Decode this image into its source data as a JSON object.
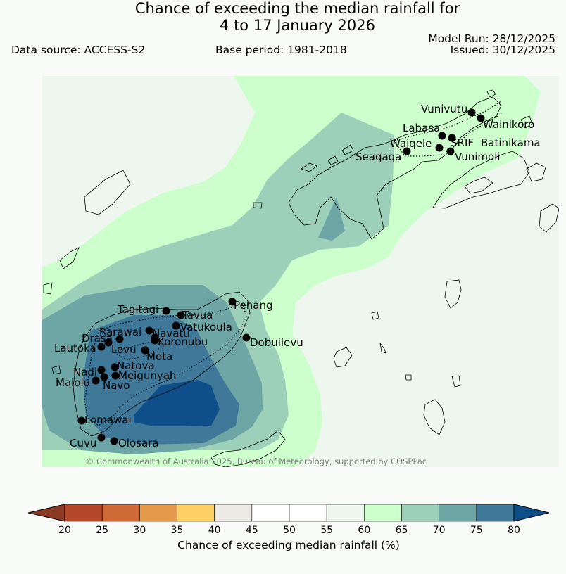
{
  "header": {
    "title_line1": "Chance of exceeding the median rainfall for",
    "title_line2": "4 to 17 January 2026",
    "data_source": "Data source: ACCESS-S2",
    "base_period": "Base period: 1981-2018",
    "model_run": "Model Run: 28/12/2025",
    "issued": "Issued: 30/12/2025"
  },
  "map": {
    "copyright": "© Commonwealth of Australia 2025, Bureau of Meteorology, supported by COSPPac",
    "stations": [
      "Vunivutu",
      "Wainikoro",
      "Labasa",
      "Waiqele",
      "SRIF",
      "Batinikama",
      "Seaqaqa",
      "Vunimoli",
      "Penang",
      "Tagitagi",
      "Tavua",
      "Vatukoula",
      "Rarawai",
      "Navatu",
      "Drasa",
      "Koronubu",
      "Lautoka",
      "Lovu",
      "Mota",
      "Natova",
      "Nadi",
      "Meigunyah",
      "Malolo",
      "Navo",
      "Dobuilevu",
      "Lomawai",
      "Cuvu",
      "Olosara"
    ]
  },
  "colorbar": {
    "label": "Chance of exceeding median rainfall (%)",
    "ticks": [
      "20",
      "25",
      "30",
      "35",
      "40",
      "45",
      "50",
      "55",
      "60",
      "65",
      "70",
      "75",
      "80"
    ],
    "colors": [
      "#b5472a",
      "#cf6a36",
      "#e39a4a",
      "#fdd066",
      "#ece8e4",
      "#ffffff",
      "#ffffff",
      "#edf7ed",
      "#ccffcc",
      "#9dd0b9",
      "#6ea6a6",
      "#3f7898"
    ],
    "under_color": "#8b3a24",
    "over_color": "#0f4f89"
  }
}
